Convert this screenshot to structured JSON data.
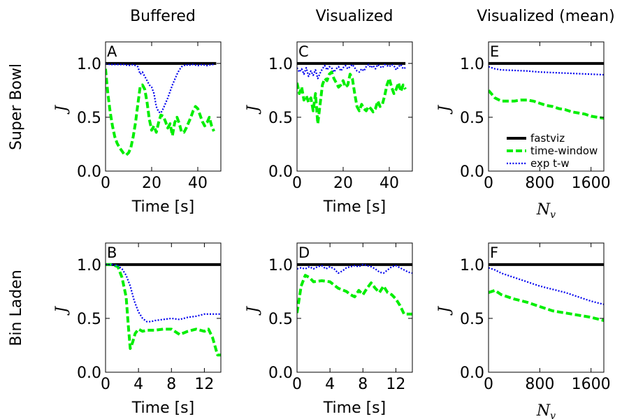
{
  "column_titles": [
    "Buffered",
    "Visualized",
    "Visualized (mean)"
  ],
  "row_titles": [
    "Super Bowl",
    "Bin Laden"
  ],
  "legend": {
    "panel": "E",
    "entries": [
      {
        "label": "fastviz",
        "color": "#000000",
        "dash": "solid"
      },
      {
        "label": "time-window",
        "color": "#00ee00",
        "dash": "dashed"
      },
      {
        "label": "exp t-w",
        "color": "#0000ee",
        "dash": "dotted"
      }
    ]
  },
  "chart_data": [
    {
      "id": "A",
      "type": "line",
      "letter": "A",
      "row": 0,
      "col": 0,
      "xlabel": "Time [s]",
      "ylabel": "J",
      "xlim": [
        0,
        50
      ],
      "ylim": [
        0,
        1.2
      ],
      "xticks": [
        0,
        20,
        40
      ],
      "xtick_labels": [
        "0",
        "20",
        "40"
      ],
      "yticks": [
        0.0,
        0.5,
        1.0
      ],
      "ytick_labels": [
        "0.0",
        "0.5",
        "1.0"
      ],
      "series": [
        {
          "name": "fastviz",
          "x": [
            0,
            48
          ],
          "y": [
            1.0,
            1.0
          ]
        },
        {
          "name": "time-window",
          "x": [
            0,
            1,
            2,
            3,
            4,
            5,
            6,
            7,
            8,
            9,
            10,
            11,
            12,
            13,
            14,
            15,
            16,
            17,
            18,
            19,
            20,
            21,
            22,
            23,
            24,
            25,
            26,
            27,
            28,
            29,
            30,
            31,
            32,
            33,
            34,
            35,
            36,
            37,
            38,
            39,
            40,
            41,
            42,
            43,
            44,
            45,
            46,
            47
          ],
          "y": [
            0.95,
            0.72,
            0.55,
            0.42,
            0.32,
            0.26,
            0.22,
            0.19,
            0.16,
            0.15,
            0.17,
            0.22,
            0.32,
            0.45,
            0.62,
            0.78,
            0.8,
            0.76,
            0.64,
            0.48,
            0.38,
            0.42,
            0.36,
            0.45,
            0.52,
            0.51,
            0.46,
            0.4,
            0.44,
            0.33,
            0.45,
            0.5,
            0.44,
            0.36,
            0.36,
            0.4,
            0.45,
            0.5,
            0.56,
            0.6,
            0.58,
            0.52,
            0.46,
            0.42,
            0.45,
            0.5,
            0.42,
            0.37
          ]
        },
        {
          "name": "exp t-w",
          "x": [
            0,
            2,
            4,
            6,
            8,
            10,
            12,
            14,
            15,
            16,
            17,
            18,
            19,
            20,
            21,
            22,
            23,
            24,
            25,
            26,
            27,
            28,
            29,
            30,
            31,
            32,
            33,
            34,
            35,
            36,
            37,
            38,
            40,
            42,
            44,
            46,
            47
          ],
          "y": [
            1.0,
            0.99,
            0.99,
            0.99,
            0.99,
            0.98,
            0.99,
            0.97,
            0.9,
            0.92,
            0.88,
            0.84,
            0.8,
            0.78,
            0.72,
            0.6,
            0.55,
            0.54,
            0.58,
            0.63,
            0.68,
            0.74,
            0.8,
            0.85,
            0.9,
            0.94,
            0.97,
            0.98,
            0.99,
            0.98,
            0.99,
            0.99,
            0.98,
            0.99,
            0.98,
            0.99,
            0.99
          ]
        }
      ]
    },
    {
      "id": "C",
      "type": "line",
      "letter": "C",
      "row": 0,
      "col": 1,
      "xlabel": "Time [s]",
      "ylabel": "J",
      "xlim": [
        0,
        50
      ],
      "ylim": [
        0,
        1.2
      ],
      "xticks": [
        0,
        20,
        40
      ],
      "xtick_labels": [
        "0",
        "20",
        "40"
      ],
      "yticks": [
        0.0,
        0.5,
        1.0
      ],
      "ytick_labels": [
        "0.0",
        "0.5",
        "1.0"
      ],
      "series": [
        {
          "name": "fastviz",
          "x": [
            0,
            47
          ],
          "y": [
            1.0,
            1.0
          ]
        },
        {
          "name": "time-window",
          "x": [
            0,
            1,
            2,
            3,
            4,
            5,
            6,
            7,
            8,
            9,
            10,
            11,
            12,
            13,
            14,
            15,
            16,
            17,
            18,
            19,
            20,
            21,
            22,
            23,
            24,
            25,
            26,
            27,
            28,
            29,
            30,
            31,
            32,
            33,
            34,
            35,
            36,
            37,
            38,
            39,
            40,
            41,
            42,
            43,
            44,
            45,
            46,
            47
          ],
          "y": [
            0.82,
            0.72,
            0.78,
            0.66,
            0.7,
            0.64,
            0.68,
            0.56,
            0.72,
            0.44,
            0.62,
            0.8,
            0.86,
            0.84,
            0.9,
            0.92,
            0.86,
            0.82,
            0.78,
            0.8,
            0.84,
            0.78,
            0.8,
            0.9,
            0.86,
            0.72,
            0.6,
            0.56,
            0.62,
            0.58,
            0.56,
            0.6,
            0.58,
            0.55,
            0.58,
            0.65,
            0.6,
            0.62,
            0.7,
            0.8,
            0.86,
            0.78,
            0.72,
            0.76,
            0.82,
            0.74,
            0.8,
            0.76
          ]
        },
        {
          "name": "exp t-w",
          "x": [
            0,
            1,
            2,
            3,
            4,
            5,
            6,
            7,
            8,
            9,
            10,
            11,
            12,
            13,
            14,
            15,
            16,
            17,
            18,
            19,
            20,
            21,
            22,
            23,
            24,
            25,
            26,
            27,
            28,
            29,
            30,
            31,
            32,
            33,
            34,
            35,
            36,
            37,
            38,
            39,
            40,
            41,
            42,
            43,
            44,
            45,
            46,
            47
          ],
          "y": [
            0.96,
            0.92,
            0.95,
            0.9,
            0.96,
            0.88,
            0.93,
            0.89,
            0.94,
            0.86,
            0.91,
            0.95,
            0.98,
            0.94,
            0.97,
            0.96,
            0.92,
            0.95,
            0.97,
            0.93,
            0.96,
            0.98,
            0.95,
            0.97,
            0.99,
            0.96,
            0.93,
            0.92,
            0.95,
            0.93,
            0.97,
            0.99,
            0.96,
            0.98,
            0.95,
            0.99,
            0.97,
            0.96,
            0.99,
            0.98,
            0.97,
            0.99,
            0.98,
            0.94,
            0.97,
            0.99,
            0.95,
            0.96
          ]
        }
      ]
    },
    {
      "id": "E",
      "type": "line",
      "letter": "E",
      "row": 0,
      "col": 2,
      "xlabel": "N_v",
      "ylabel": "J",
      "xlim": [
        0,
        1800
      ],
      "ylim": [
        0,
        1.2
      ],
      "xticks": [
        0,
        800,
        1600
      ],
      "xtick_labels": [
        "0",
        "800",
        "1600"
      ],
      "yticks": [
        0.0,
        0.5,
        1.0
      ],
      "ytick_labels": [
        "0.0",
        "0.5",
        "1.0"
      ],
      "series": [
        {
          "name": "fastviz",
          "x": [
            0,
            1800
          ],
          "y": [
            1.0,
            1.0
          ]
        },
        {
          "name": "time-window",
          "x": [
            0,
            100,
            200,
            300,
            400,
            500,
            600,
            700,
            800,
            900,
            1000,
            1100,
            1200,
            1300,
            1400,
            1500,
            1600,
            1700,
            1800
          ],
          "y": [
            0.75,
            0.68,
            0.65,
            0.65,
            0.65,
            0.66,
            0.66,
            0.65,
            0.63,
            0.61,
            0.6,
            0.58,
            0.57,
            0.55,
            0.54,
            0.53,
            0.51,
            0.5,
            0.49
          ]
        },
        {
          "name": "exp t-w",
          "x": [
            0,
            100,
            200,
            400,
            600,
            800,
            1000,
            1200,
            1400,
            1600,
            1800
          ],
          "y": [
            0.97,
            0.95,
            0.94,
            0.935,
            0.93,
            0.92,
            0.915,
            0.91,
            0.905,
            0.9,
            0.895
          ]
        }
      ]
    },
    {
      "id": "B",
      "type": "line",
      "letter": "B",
      "row": 1,
      "col": 0,
      "xlabel": "Time [s]",
      "ylabel": "J",
      "xlim": [
        0,
        14
      ],
      "ylim": [
        0,
        1.2
      ],
      "xticks": [
        0,
        4,
        8,
        12
      ],
      "xtick_labels": [
        "0",
        "4",
        "8",
        "12"
      ],
      "yticks": [
        0.0,
        0.5,
        1.0
      ],
      "ytick_labels": [
        "0.0",
        "0.5",
        "1.0"
      ],
      "series": [
        {
          "name": "fastviz",
          "x": [
            0,
            14
          ],
          "y": [
            1.0,
            1.0
          ]
        },
        {
          "name": "time-window",
          "x": [
            0,
            0.8,
            1.5,
            2.0,
            2.5,
            2.8,
            3.0,
            3.3,
            3.6,
            4.0,
            4.5,
            5.0,
            6.0,
            7.0,
            8.0,
            9.0,
            10.0,
            11.0,
            12.0,
            12.5,
            13.0,
            13.3,
            13.6,
            14.0
          ],
          "y": [
            1.0,
            1.0,
            0.98,
            0.88,
            0.7,
            0.4,
            0.22,
            0.28,
            0.36,
            0.4,
            0.38,
            0.39,
            0.39,
            0.4,
            0.4,
            0.35,
            0.38,
            0.4,
            0.38,
            0.4,
            0.32,
            0.24,
            0.16,
            0.16
          ]
        },
        {
          "name": "exp t-w",
          "x": [
            0,
            0.8,
            1.5,
            2.0,
            2.5,
            3.0,
            3.5,
            4.0,
            4.5,
            5.0,
            5.5,
            6.0,
            7.0,
            8.0,
            9.0,
            10.0,
            11.0,
            12.0,
            13.0,
            14.0
          ],
          "y": [
            1.0,
            1.0,
            0.99,
            0.96,
            0.9,
            0.8,
            0.66,
            0.56,
            0.5,
            0.47,
            0.47,
            0.48,
            0.49,
            0.5,
            0.49,
            0.51,
            0.52,
            0.54,
            0.54,
            0.54
          ]
        }
      ]
    },
    {
      "id": "D",
      "type": "line",
      "letter": "D",
      "row": 1,
      "col": 1,
      "xlabel": "Time [s]",
      "ylabel": "J",
      "xlim": [
        0,
        14
      ],
      "ylim": [
        0,
        1.2
      ],
      "xticks": [
        0,
        4,
        8,
        12
      ],
      "xtick_labels": [
        "0",
        "4",
        "8",
        "12"
      ],
      "yticks": [
        0.0,
        0.5,
        1.0
      ],
      "ytick_labels": [
        "0.0",
        "0.5",
        "1.0"
      ],
      "series": [
        {
          "name": "fastviz",
          "x": [
            0,
            14
          ],
          "y": [
            1.0,
            1.0
          ]
        },
        {
          "name": "time-window",
          "x": [
            0,
            0.5,
            1.0,
            1.5,
            2.0,
            3.0,
            4.0,
            5.0,
            6.0,
            6.5,
            7.0,
            7.5,
            8.0,
            8.5,
            9.0,
            9.5,
            10.0,
            10.5,
            11.0,
            11.5,
            12.0,
            12.5,
            13.0,
            14.0
          ],
          "y": [
            0.55,
            0.8,
            0.9,
            0.88,
            0.84,
            0.85,
            0.84,
            0.78,
            0.75,
            0.72,
            0.7,
            0.76,
            0.72,
            0.78,
            0.83,
            0.78,
            0.74,
            0.8,
            0.74,
            0.72,
            0.68,
            0.62,
            0.54,
            0.54
          ]
        },
        {
          "name": "exp t-w",
          "x": [
            0,
            0.5,
            1.0,
            1.5,
            2.0,
            2.5,
            3.0,
            3.5,
            4.0,
            4.5,
            5.0,
            5.5,
            6.0,
            6.5,
            7.0,
            7.5,
            8.0,
            8.5,
            9.0,
            9.5,
            10.0,
            10.5,
            11.0,
            11.5,
            12.0,
            12.5,
            13.0,
            13.5,
            14.0
          ],
          "y": [
            0.96,
            0.97,
            0.96,
            0.98,
            0.96,
            0.98,
            0.99,
            0.96,
            0.98,
            0.96,
            0.92,
            0.94,
            0.97,
            0.98,
            0.99,
            0.98,
            1.0,
            0.99,
            0.98,
            0.96,
            0.93,
            0.92,
            0.95,
            0.98,
            0.99,
            0.97,
            0.95,
            0.93,
            0.92
          ]
        }
      ]
    },
    {
      "id": "F",
      "type": "line",
      "letter": "F",
      "row": 1,
      "col": 2,
      "xlabel": "N_v",
      "ylabel": "J",
      "xlim": [
        0,
        1800
      ],
      "ylim": [
        0,
        1.2
      ],
      "xticks": [
        0,
        800,
        1600
      ],
      "xtick_labels": [
        "0",
        "800",
        "1600"
      ],
      "yticks": [
        0.0,
        0.5,
        1.0
      ],
      "ytick_labels": [
        "0.0",
        "0.5",
        "1.0"
      ],
      "series": [
        {
          "name": "fastviz",
          "x": [
            0,
            1800
          ],
          "y": [
            1.0,
            1.0
          ]
        },
        {
          "name": "time-window",
          "x": [
            0,
            100,
            200,
            400,
            600,
            800,
            1000,
            1200,
            1400,
            1600,
            1800
          ],
          "y": [
            0.74,
            0.76,
            0.72,
            0.68,
            0.65,
            0.61,
            0.57,
            0.55,
            0.53,
            0.51,
            0.48
          ]
        },
        {
          "name": "exp t-w",
          "x": [
            0,
            100,
            200,
            400,
            600,
            800,
            1000,
            1200,
            1400,
            1600,
            1800
          ],
          "y": [
            0.97,
            0.95,
            0.92,
            0.88,
            0.84,
            0.8,
            0.77,
            0.74,
            0.7,
            0.66,
            0.63
          ]
        }
      ]
    }
  ]
}
